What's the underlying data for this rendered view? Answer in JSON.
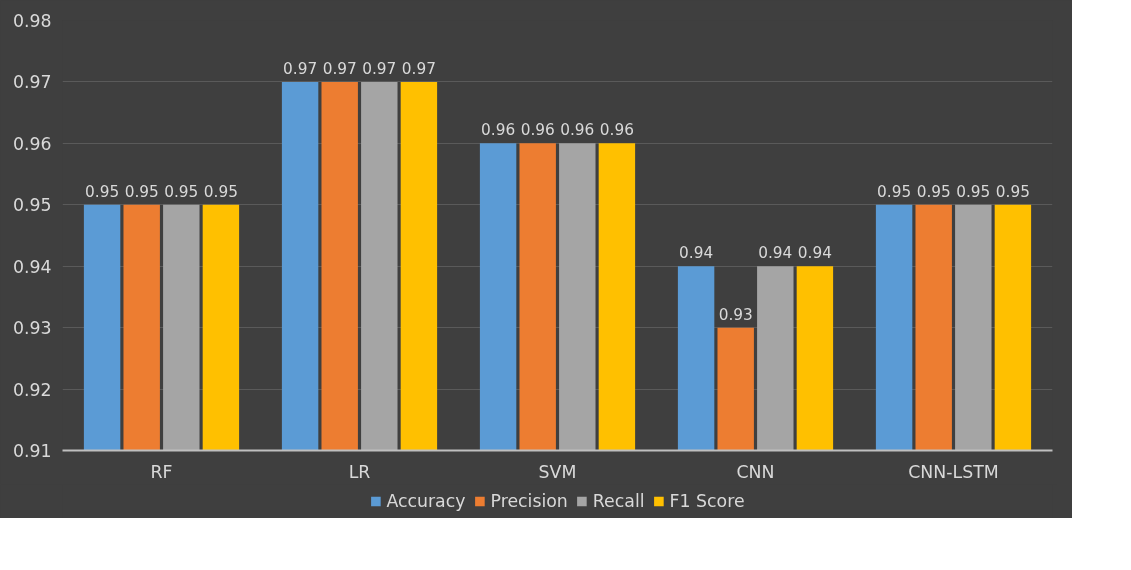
{
  "chart_data": {
    "type": "bar",
    "categories": [
      "RF",
      "LR",
      "SVM",
      "CNN",
      "CNN-LSTM"
    ],
    "series": [
      {
        "name": "Accuracy",
        "color": "#5b9bd5",
        "values": [
          0.95,
          0.97,
          0.96,
          0.94,
          0.95
        ]
      },
      {
        "name": "Precision",
        "color": "#ed7d31",
        "values": [
          0.95,
          0.97,
          0.96,
          0.93,
          0.95
        ]
      },
      {
        "name": "Recall",
        "color": "#a5a5a5",
        "values": [
          0.95,
          0.97,
          0.96,
          0.94,
          0.95
        ]
      },
      {
        "name": "F1 Score",
        "color": "#ffc000",
        "values": [
          0.95,
          0.97,
          0.96,
          0.94,
          0.95
        ]
      }
    ],
    "ylim": [
      0.91,
      0.98
    ],
    "yticks": [
      0.91,
      0.92,
      0.93,
      0.94,
      0.95,
      0.96,
      0.97,
      0.98
    ],
    "grid": "y",
    "legend": "bottom",
    "data_labels": true
  }
}
